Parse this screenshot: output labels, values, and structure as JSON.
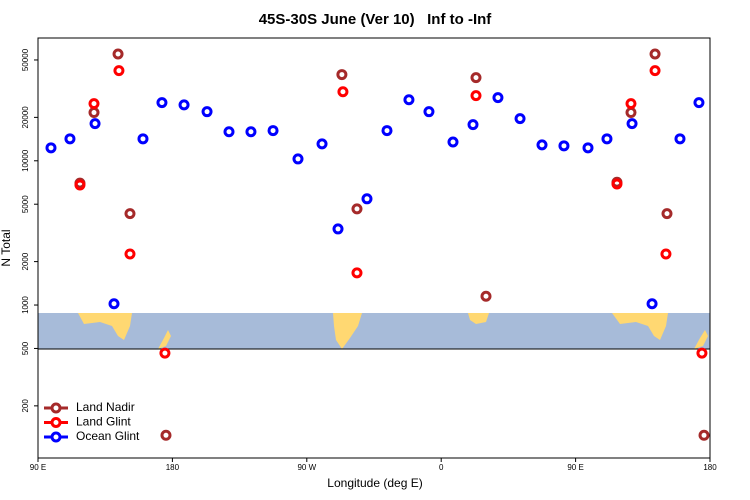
{
  "chart_data": {
    "type": "scatter",
    "title": "45S-30S June (Ver 10)   Inf to -Inf",
    "xlabel": "Longitude (deg E)",
    "ylabel": "N Total",
    "xlim": [
      90,
      540
    ],
    "xticks": [
      {
        "value": 90,
        "label": "90 E"
      },
      {
        "value": 180,
        "label": "180"
      },
      {
        "value": 270,
        "label": "90 W"
      },
      {
        "value": 360,
        "label": "0"
      },
      {
        "value": 450,
        "label": "90 E"
      },
      {
        "value": 540,
        "label": "180"
      }
    ],
    "ylim": [
      87,
      71000
    ],
    "yscale": "log",
    "yticks": [
      200,
      500,
      1000,
      2000,
      5000,
      10000,
      20000,
      50000
    ],
    "legend": "lower left",
    "series": [
      {
        "name": "Land Nadir",
        "color": "#a52a2a",
        "x": [
          118.1,
          127.5,
          143.6,
          151.6,
          175.7,
          293.5,
          303.6,
          383.3,
          390.0,
          477.7,
          487.1,
          503.2,
          511.2,
          536.0
        ],
        "values": [
          7000,
          21600,
          55000,
          4300,
          125,
          39600,
          4640,
          37700,
          1150,
          7100,
          21600,
          55000,
          4300,
          125
        ]
      },
      {
        "name": "Land Glint",
        "color": "#ff0000",
        "x": [
          118.1,
          127.5,
          144.2,
          151.6,
          175.0,
          294.2,
          303.6,
          383.3,
          477.7,
          487.1,
          503.2,
          510.5,
          534.6
        ],
        "values": [
          6800,
          24900,
          42200,
          2260,
          464,
          30100,
          1670,
          28300,
          6900,
          24900,
          42200,
          2260,
          464
        ]
      },
      {
        "name": "Ocean Glint",
        "color": "#0000ff",
        "x": [
          98.7,
          111.4,
          128.2,
          140.9,
          160.3,
          173.0,
          187.8,
          203.2,
          217.9,
          232.6,
          247.4,
          264.1,
          280.2,
          290.9,
          310.3,
          323.7,
          338.4,
          351.8,
          367.9,
          381.3,
          398.0,
          412.8,
          427.5,
          442.2,
          458.3,
          471.0,
          487.8,
          501.2,
          519.9,
          532.6
        ],
        "values": [
          12300,
          14200,
          18100,
          1020,
          14200,
          25300,
          24400,
          21900,
          15900,
          15900,
          16200,
          10300,
          13100,
          3370,
          5450,
          16200,
          26500,
          21900,
          13500,
          17800,
          27400,
          19600,
          12900,
          12700,
          12300,
          14200,
          18100,
          1020,
          14200,
          25300
        ]
      }
    ]
  }
}
